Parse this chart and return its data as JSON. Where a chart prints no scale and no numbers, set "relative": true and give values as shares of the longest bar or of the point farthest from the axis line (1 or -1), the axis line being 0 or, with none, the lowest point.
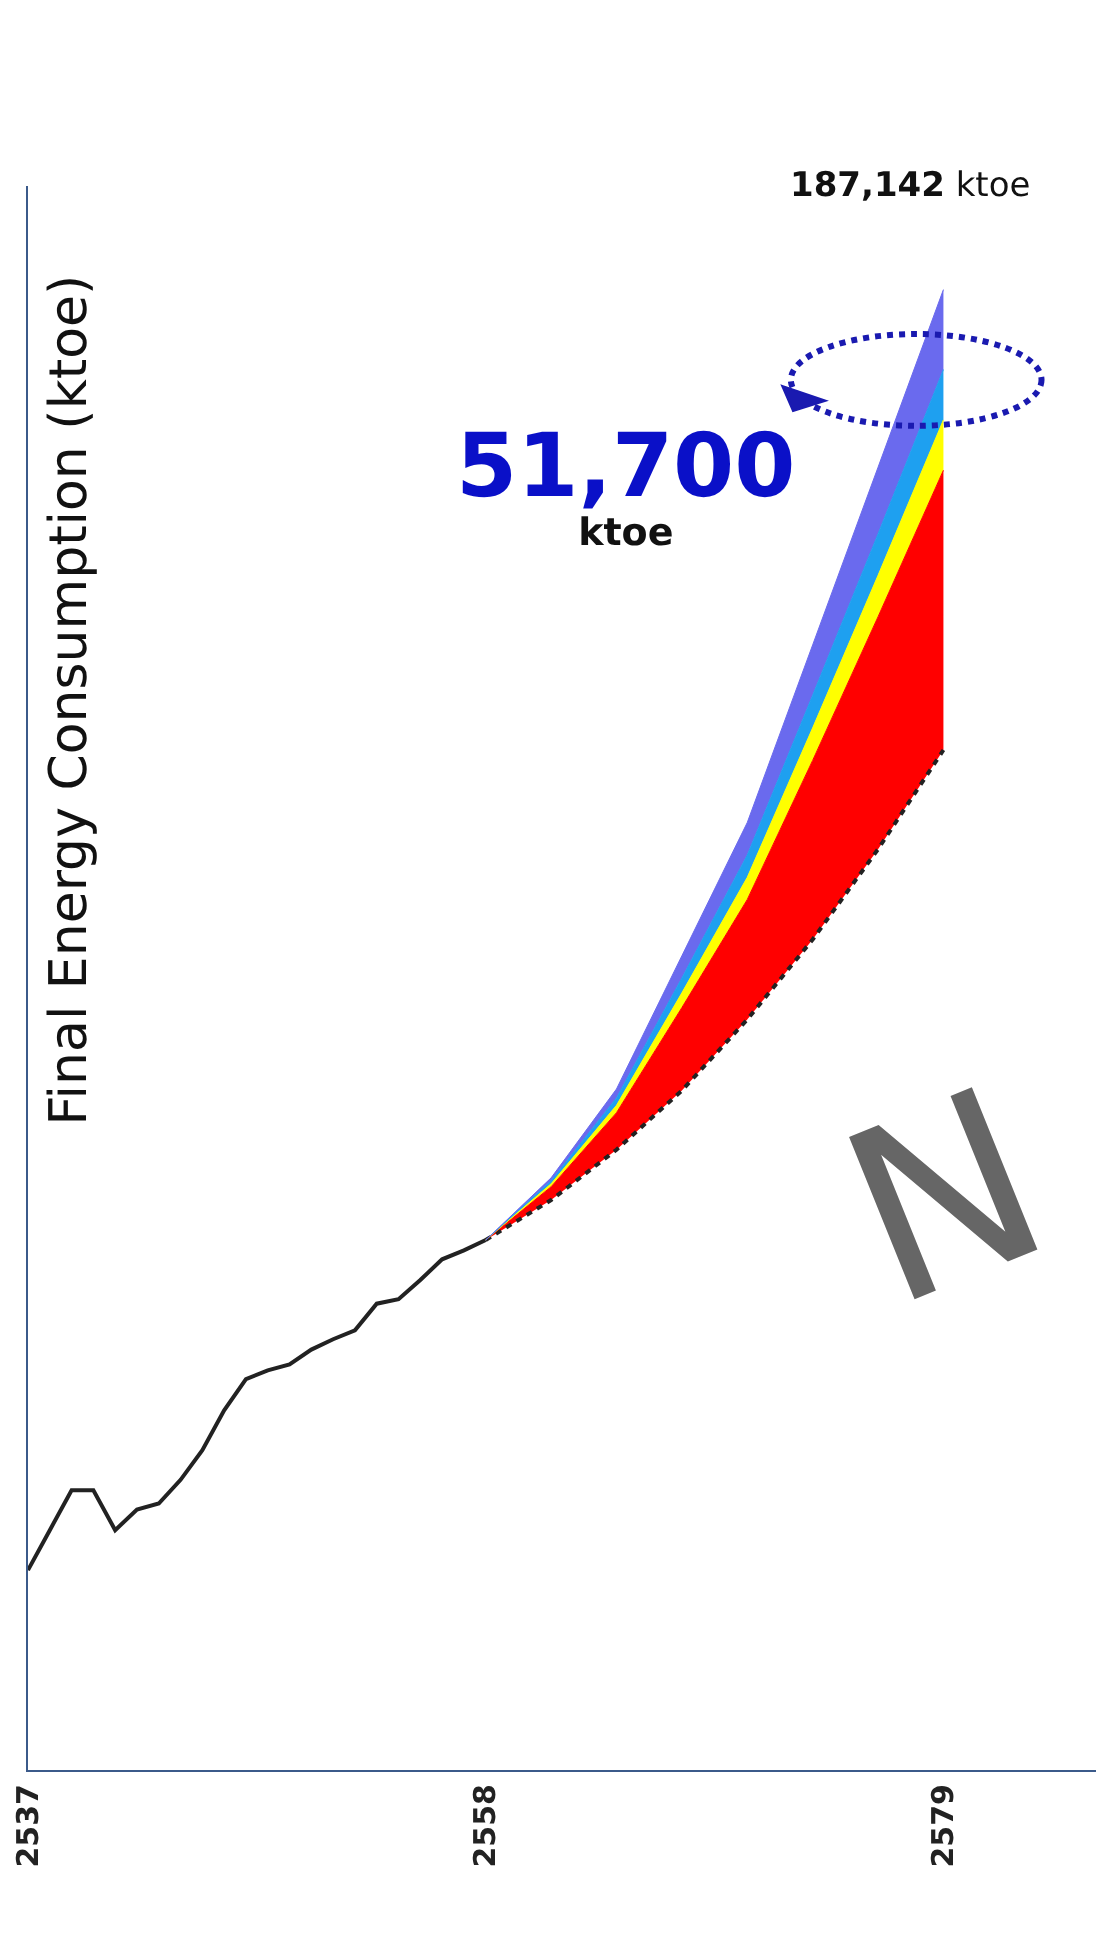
{
  "chart_data": {
    "type": "area",
    "relative": true,
    "ylabel": "Final Energy Consumption (ktoe)",
    "xlim": [
      2537,
      2586
    ],
    "xticks": [
      2537,
      2558,
      2579
    ],
    "series": [
      {
        "type": "line",
        "color": "#222222",
        "line_style": "solid",
        "x": [
          2537,
          2538,
          2539,
          2540,
          2541,
          2542,
          2543,
          2544,
          2545,
          2546,
          2547,
          2548,
          2549,
          2550,
          2551,
          2552,
          2553,
          2554,
          2555,
          2556,
          2557,
          2558
        ],
        "values": [
          0.135,
          0.162,
          0.189,
          0.189,
          0.162,
          0.176,
          0.18,
          0.196,
          0.216,
          0.243,
          0.264,
          0.27,
          0.274,
          0.284,
          0.291,
          0.297,
          0.315,
          0.318,
          0.331,
          0.345,
          0.351,
          0.358
        ]
      },
      {
        "type": "line",
        "color": "#222222",
        "line_style": "dotted",
        "x": [
          2558,
          2561,
          2564,
          2567,
          2570,
          2573,
          2576,
          2579
        ],
        "values": [
          0.358,
          0.385,
          0.419,
          0.459,
          0.507,
          0.561,
          0.622,
          0.689
        ]
      },
      {
        "color": "#ff0000",
        "x": [
          2558,
          2561,
          2564,
          2567,
          2570,
          2573,
          2576,
          2579
        ],
        "values": [
          0.358,
          0.394,
          0.444,
          0.515,
          0.588,
          0.682,
          0.779,
          0.878
        ]
      },
      {
        "color": "#ffff00",
        "x": [
          2558,
          2561,
          2564,
          2567,
          2570,
          2573,
          2576,
          2579
        ],
        "values": [
          0.358,
          0.396,
          0.449,
          0.525,
          0.603,
          0.704,
          0.807,
          0.912
        ]
      },
      {
        "color": "#1ea0f0",
        "x": [
          2558,
          2561,
          2564,
          2567,
          2570,
          2573,
          2576,
          2579
        ],
        "values": [
          0.358,
          0.398,
          0.454,
          0.535,
          0.618,
          0.726,
          0.835,
          0.946
        ]
      },
      {
        "color": "#6a6aee",
        "x": [
          2558,
          2561,
          2564,
          2567,
          2570,
          2573,
          2576,
          2579
        ],
        "values": [
          0.358,
          0.4,
          0.46,
          0.55,
          0.64,
          0.76,
          0.88,
          1.0
        ]
      }
    ],
    "annotations": [
      "187,142 ktoe",
      "51,700 ktoe",
      "N"
    ]
  }
}
